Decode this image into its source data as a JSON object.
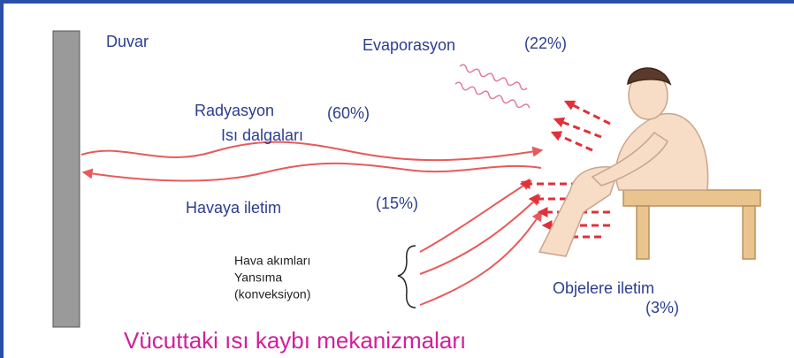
{
  "wall": {
    "label": "Duvar"
  },
  "evaporation": {
    "label": "Evaporasyon",
    "share": "(22%)"
  },
  "radiation": {
    "label": "Radyasyon",
    "share": "(60%)",
    "sublabel": "Isı dalgaları"
  },
  "air_conduction": {
    "label": "Havaya iletim",
    "share": "(15%)"
  },
  "convection": {
    "lines": [
      "Hava akımları",
      "Yansıma",
      "(konveksiyon)"
    ]
  },
  "object_conduction": {
    "label": "Objelere iletim",
    "share": "(3%)"
  },
  "title": "Vücuttaki ısı kaybı mekanizmaları"
}
